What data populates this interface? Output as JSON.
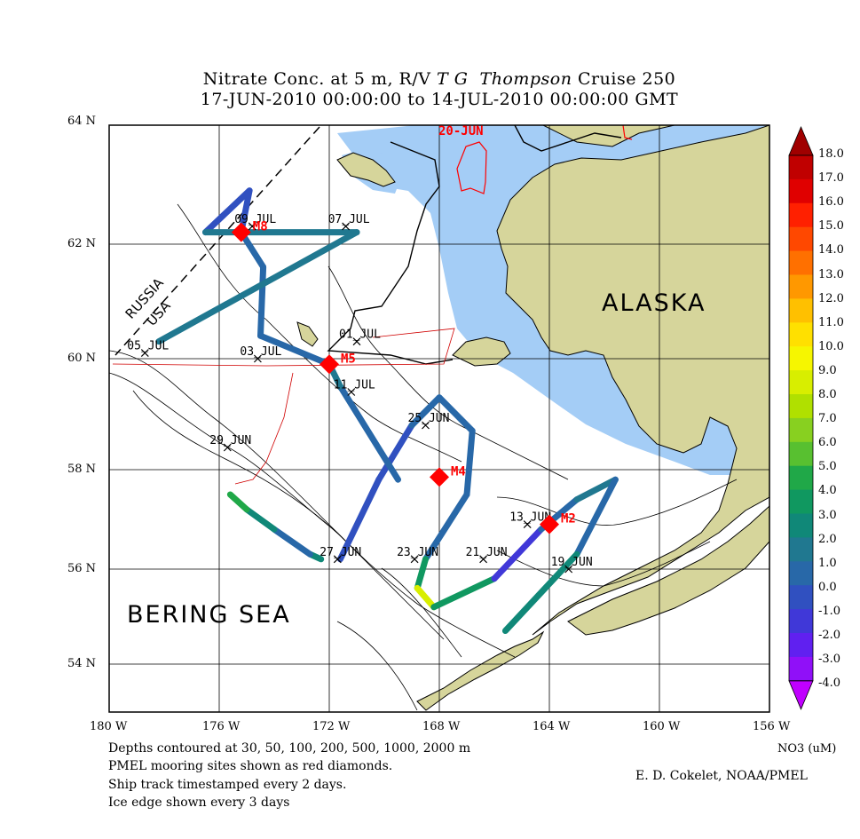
{
  "title": {
    "line1_prefix": "Nitrate Conc. at 5 m, R/V ",
    "line1_italic1": "T G",
    "line1_italic2": "Thompson",
    "line1_suffix": " Cruise 250",
    "line2": "17-JUN-2010 00:00:00 to 14-JUL-2010 00:00:00 GMT"
  },
  "axes": {
    "lat_labels": [
      "64 N",
      "62 N",
      "60 N",
      "58 N",
      "56 N",
      "54 N"
    ],
    "lon_labels": [
      "180 W",
      "176 W",
      "172 W",
      "168 W",
      "164 W",
      "160 W",
      "156 W"
    ]
  },
  "map": {
    "region_labels": {
      "alaska": "ALASKA",
      "bering_sea": "BERING SEA",
      "russia": "RUSSIA",
      "usa": "USA"
    },
    "ice_date": "20-JUN",
    "colors": {
      "land": "#d6d59b",
      "ice": "#a4cdf6",
      "mooring": "#ff0000"
    },
    "moorings": [
      {
        "name": "M8",
        "lon": -175.2,
        "lat": 62.2
      },
      {
        "name": "M5",
        "lon": -172.0,
        "lat": 59.9
      },
      {
        "name": "M4",
        "lon": -168.0,
        "lat": 57.85
      },
      {
        "name": "M2",
        "lon": -164.0,
        "lat": 56.9
      }
    ],
    "track_stamps": [
      {
        "label": "09_JUL",
        "lon": -174.8,
        "lat": 62.3
      },
      {
        "label": "07_JUL",
        "lon": -171.4,
        "lat": 62.3
      },
      {
        "label": "05_JUL",
        "lon": -178.7,
        "lat": 60.1
      },
      {
        "label": "03_JUL",
        "lon": -174.6,
        "lat": 60.0
      },
      {
        "label": "01_JUL",
        "lon": -171.0,
        "lat": 60.3
      },
      {
        "label": "11_JUL",
        "lon": -171.2,
        "lat": 59.4
      },
      {
        "label": "29_JUN",
        "lon": -175.7,
        "lat": 58.4
      },
      {
        "label": "25_JUN",
        "lon": -168.5,
        "lat": 58.8
      },
      {
        "label": "27_JUN",
        "lon": -171.7,
        "lat": 56.2
      },
      {
        "label": "23_JUN",
        "lon": -168.9,
        "lat": 56.2
      },
      {
        "label": "21_JUN",
        "lon": -166.4,
        "lat": 56.2
      },
      {
        "label": "13_JUN",
        "lon": -164.8,
        "lat": 56.9
      },
      {
        "label": "19_JUN",
        "lon": -163.3,
        "lat": 56.0
      }
    ],
    "nitrate_track": [
      {
        "lon": -172.3,
        "lat": 56.2,
        "no3": 5.5
      },
      {
        "lon": -172.7,
        "lat": 56.3,
        "no3": 1.0
      },
      {
        "lon": -174.0,
        "lat": 56.8,
        "no3": 2.0
      },
      {
        "lon": -175.0,
        "lat": 57.2,
        "no3": 4.0
      },
      {
        "lon": -175.6,
        "lat": 57.5,
        "no3": 6.0
      },
      {
        "lon": -171.6,
        "lat": 56.2,
        "no3": 1.5
      },
      {
        "lon": -170.2,
        "lat": 57.8,
        "no3": -1.0
      },
      {
        "lon": -169.0,
        "lat": 58.8,
        "no3": 1.5
      },
      {
        "lon": -168.0,
        "lat": 59.3,
        "no3": 1.0
      },
      {
        "lon": -166.8,
        "lat": 58.7,
        "no3": 0.5
      },
      {
        "lon": -167.0,
        "lat": 57.5,
        "no3": 2.0
      },
      {
        "lon": -168.5,
        "lat": 56.2,
        "no3": 0.0
      },
      {
        "lon": -168.8,
        "lat": 55.6,
        "no3": 9.0
      },
      {
        "lon": -168.2,
        "lat": 55.2,
        "no3": 9.5
      },
      {
        "lon": -166.0,
        "lat": 55.8,
        "no3": -1.0
      },
      {
        "lon": -164.3,
        "lat": 56.8,
        "no3": 0.0
      },
      {
        "lon": -163.0,
        "lat": 57.4,
        "no3": 3.0
      },
      {
        "lon": -161.6,
        "lat": 57.8,
        "no3": 1.5
      },
      {
        "lon": -163.0,
        "lat": 56.3,
        "no3": 1.0
      },
      {
        "lon": -165.6,
        "lat": 54.7,
        "no3": 6.0
      },
      {
        "lon": -169.5,
        "lat": 57.8,
        "no3": 0.5
      },
      {
        "lon": -171.6,
        "lat": 59.5,
        "no3": 2.5
      },
      {
        "lon": -172.0,
        "lat": 59.9,
        "no3": 1.0
      },
      {
        "lon": -174.5,
        "lat": 60.4,
        "no3": 1.0
      },
      {
        "lon": -174.4,
        "lat": 61.6,
        "no3": 2.0
      },
      {
        "lon": -175.2,
        "lat": 62.2,
        "no3": 0.5
      },
      {
        "lon": -174.9,
        "lat": 62.9,
        "no3": -1.0
      },
      {
        "lon": -176.5,
        "lat": 62.2,
        "no3": 1.5
      },
      {
        "lon": -171.0,
        "lat": 62.2,
        "no3": 2.5
      },
      {
        "lon": -178.2,
        "lat": 60.3,
        "no3": 1.0
      },
      {
        "lon": -179.5,
        "lat": 59.9,
        "no3": 2.5
      }
    ]
  },
  "colorbar": {
    "labels": [
      "18.0",
      "17.0",
      "16.0",
      "15.0",
      "14.0",
      "13.0",
      "12.0",
      "11.0",
      "10.0",
      "9.0",
      "8.0",
      "7.0",
      "6.0",
      "5.0",
      "4.0",
      "3.0",
      "2.0",
      "1.0",
      "0.0",
      "-1.0",
      "-2.0",
      "-3.0",
      "-4.0"
    ],
    "colors": [
      "#c00000",
      "#e00000",
      "#ff2000",
      "#ff4800",
      "#ff7000",
      "#ff9800",
      "#ffc000",
      "#ffe000",
      "#f6f600",
      "#d8ee00",
      "#b0e000",
      "#88d020",
      "#58c030",
      "#20a848",
      "#109860",
      "#108878",
      "#207890",
      "#2868a8",
      "#3050c0",
      "#4038d8",
      "#6020f0",
      "#9010f8",
      "#c000ff"
    ],
    "units": "NO3 (uM)"
  },
  "captions": [
    "Depths contoured at 30, 50, 100, 200, 500, 1000, 2000 m",
    "PMEL mooring sites shown as red diamonds.",
    "Ship track timestamped every 2 days.",
    "Ice edge shown every 3 days"
  ],
  "credit": "E. D. Cokelet, NOAA/PMEL"
}
